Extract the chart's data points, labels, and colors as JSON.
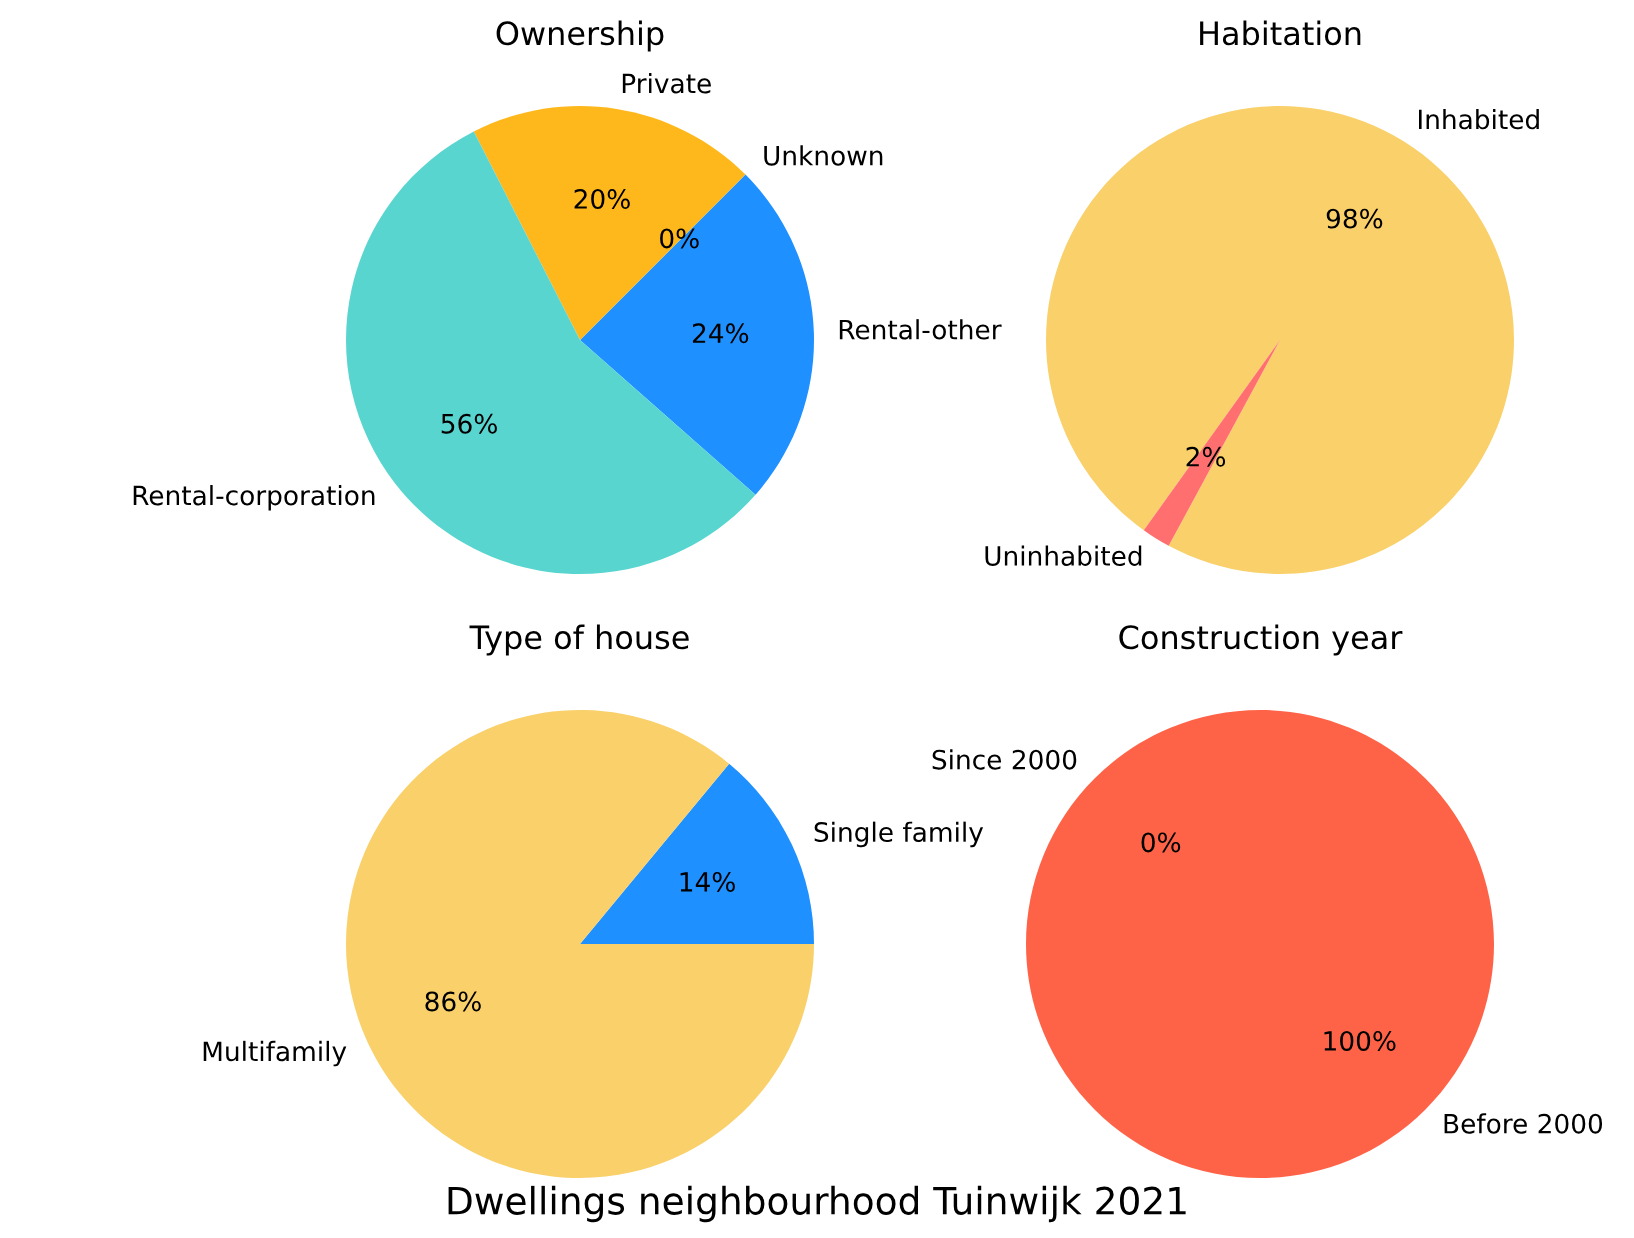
{
  "chart_data": [
    {
      "type": "pie",
      "title": "Ownership",
      "categories": [
        "Rental-other",
        "Unknown",
        "Private",
        "Rental-corporation"
      ],
      "values": [
        24,
        0,
        20,
        56
      ],
      "colors": [
        "#1e90ff",
        "#9370db",
        "#ffb81c",
        "#59d5d0"
      ],
      "value_labels": [
        "24%",
        "0%",
        "20%",
        "56%"
      ]
    },
    {
      "type": "pie",
      "title": "Habitation",
      "categories": [
        "Inhabited",
        "Uninhabited"
      ],
      "values": [
        98,
        2
      ],
      "colors": [
        "#f9d06a",
        "#ff6f6f"
      ],
      "value_labels": [
        "98%",
        "2%"
      ]
    },
    {
      "type": "pie",
      "title": "Type of house",
      "categories": [
        "Single family",
        "Multifamily"
      ],
      "values": [
        14,
        86
      ],
      "colors": [
        "#1e90ff",
        "#f9d06a"
      ],
      "value_labels": [
        "14%",
        "86%"
      ]
    },
    {
      "type": "pie",
      "title": "Construction year",
      "categories": [
        "Before 2000",
        "Since 2000"
      ],
      "values": [
        100,
        0
      ],
      "colors": [
        "#ff6347",
        "#1e90ff"
      ],
      "value_labels": [
        "100%",
        "0%"
      ],
      "annotations": [
        "Dwellings neighbourhood Tuinwijk 2021"
      ]
    }
  ]
}
